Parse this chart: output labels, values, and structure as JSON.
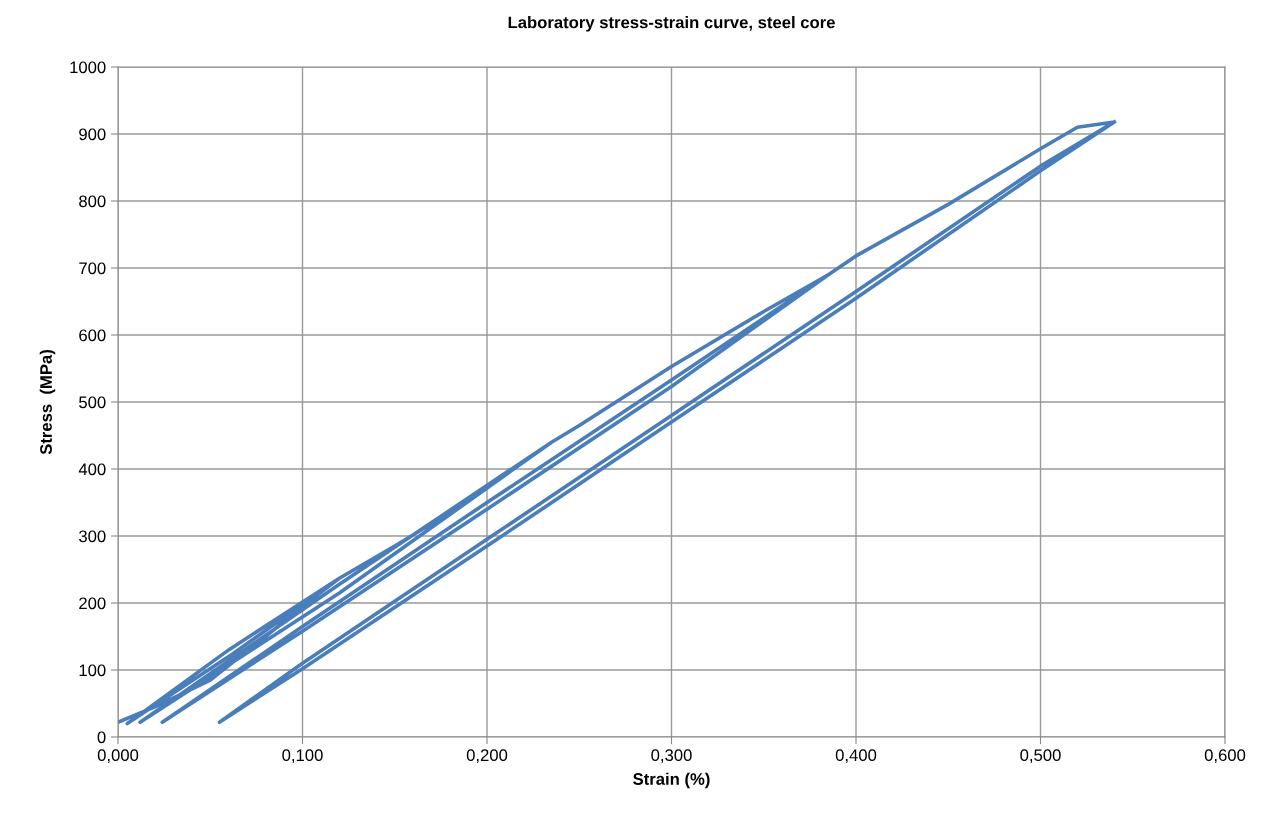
{
  "chart_data": {
    "type": "line",
    "title": "Laboratory stress-strain curve, steel core",
    "xlabel": "Strain (%)",
    "ylabel": "Stress  (MPa)",
    "series": [
      {
        "color": "#4a7ebb",
        "x": [
          0.0,
          0.02,
          0.05,
          0.08,
          0.1,
          0.12,
          0.06,
          0.005,
          0.06,
          0.12,
          0.15,
          0.18,
          0.2,
          0.235,
          0.12,
          0.012,
          0.12,
          0.235,
          0.25,
          0.3,
          0.35,
          0.385,
          0.3,
          0.2,
          0.1,
          0.024,
          0.1,
          0.2,
          0.3,
          0.385,
          0.4,
          0.45,
          0.5,
          0.52,
          0.54,
          0.5,
          0.4,
          0.3,
          0.2,
          0.1,
          0.055,
          0.1,
          0.2,
          0.3,
          0.4,
          0.5,
          0.54
        ],
        "values": [
          22,
          45,
          85,
          150,
          195,
          237,
          120,
          20,
          130,
          237,
          285,
          335,
          375,
          440,
          215,
          22,
          228,
          440,
          465,
          553,
          635,
          690,
          523,
          340,
          158,
          22,
          165,
          350,
          533,
          690,
          718,
          795,
          878,
          910,
          918,
          845,
          655,
          470,
          285,
          102,
          22,
          110,
          295,
          480,
          665,
          852,
          918
        ]
      }
    ],
    "xlim": [
      0,
      0.6
    ],
    "ylim": [
      0,
      1000
    ],
    "xticks": [
      {
        "value": 0,
        "label": "0,000"
      },
      {
        "value": 0.1,
        "label": "0,100"
      },
      {
        "value": 0.2,
        "label": "0,200"
      },
      {
        "value": 0.3,
        "label": "0,300"
      },
      {
        "value": 0.4,
        "label": "0,400"
      },
      {
        "value": 0.5,
        "label": "0,500"
      },
      {
        "value": 0.6,
        "label": "0,600"
      }
    ],
    "yticks": [
      0,
      100,
      200,
      300,
      400,
      500,
      600,
      700,
      800,
      900,
      1000
    ],
    "grid": true,
    "marker": "none",
    "line_style": "solid"
  }
}
